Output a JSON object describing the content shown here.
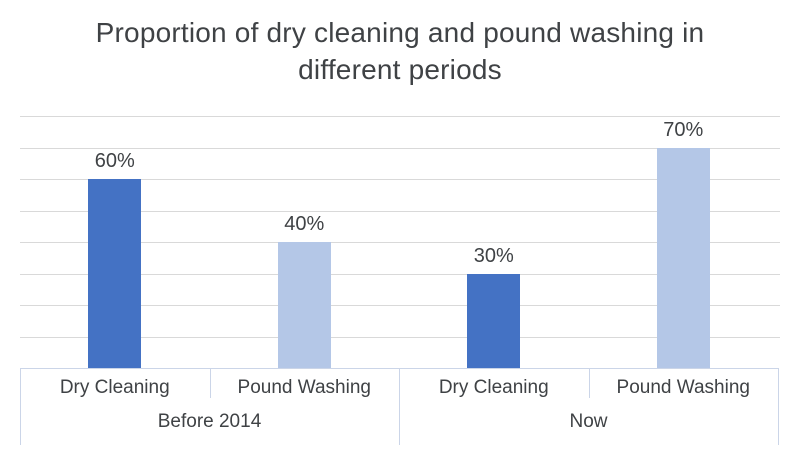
{
  "chart_data": {
    "type": "bar",
    "title": "Proportion of dry cleaning and pound washing in different periods",
    "groups": [
      {
        "label": "Before 2014",
        "bars": [
          {
            "category": "Dry Cleaning",
            "value": 60,
            "data_label": "60%",
            "color": "#4472C4"
          },
          {
            "category": "Pound Washing",
            "value": 40,
            "data_label": "40%",
            "color": "#B4C7E7"
          }
        ]
      },
      {
        "label": "Now",
        "bars": [
          {
            "category": "Dry Cleaning",
            "value": 30,
            "data_label": "30%",
            "color": "#4472C4"
          },
          {
            "category": "Pound Washing",
            "value": 70,
            "data_label": "70%",
            "color": "#B4C7E7"
          }
        ]
      }
    ],
    "ylim": [
      0,
      80
    ],
    "gridline_step": 10,
    "grid": true,
    "legend": "none",
    "y_axis_tick_labels_visible": false,
    "colors": {
      "bar_dry_cleaning": "#4472C4",
      "bar_pound_washing": "#B4C7E7",
      "gridline": "#D9D9D9",
      "axis_line": "#CBD5E8",
      "title_text": "#3F4245",
      "label_text": "#3F4245"
    }
  }
}
